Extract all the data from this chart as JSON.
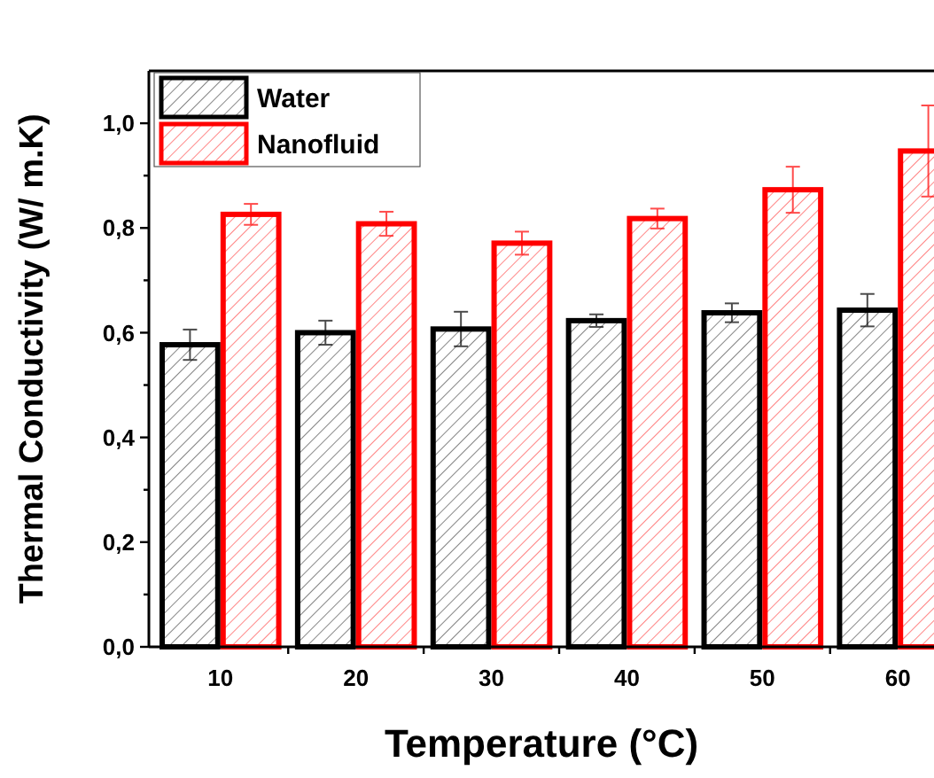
{
  "chart_data": {
    "type": "bar",
    "xlabel": "Temperature (°C)",
    "ylabel": "Thermal Conductivity (W/ m.K)",
    "categories": [
      "10",
      "20",
      "30",
      "40",
      "50",
      "60"
    ],
    "series": [
      {
        "name": "Water",
        "color": "#000000",
        "values": [
          0.577,
          0.6,
          0.607,
          0.623,
          0.638,
          0.643
        ],
        "errors": [
          0.029,
          0.023,
          0.033,
          0.012,
          0.018,
          0.031
        ]
      },
      {
        "name": "Nanofluid",
        "color": "#ff0000",
        "values": [
          0.826,
          0.808,
          0.771,
          0.818,
          0.873,
          0.947
        ],
        "errors": [
          0.02,
          0.023,
          0.022,
          0.019,
          0.044,
          0.087
        ]
      }
    ],
    "ylim": [
      0,
      1.1
    ],
    "yticks": [
      {
        "value": 0,
        "label": "0,0"
      },
      {
        "value": 0.1,
        "label": null
      },
      {
        "value": 0.2,
        "label": "0,2"
      },
      {
        "value": 0.3,
        "label": null
      },
      {
        "value": 0.4,
        "label": "0,4"
      },
      {
        "value": 0.5,
        "label": null
      },
      {
        "value": 0.6,
        "label": "0,6"
      },
      {
        "value": 0.7,
        "label": null
      },
      {
        "value": 0.8,
        "label": "0,8"
      },
      {
        "value": 0.9,
        "label": null
      },
      {
        "value": 1.0,
        "label": "1,0"
      }
    ],
    "grid": false,
    "legend": "top left"
  }
}
